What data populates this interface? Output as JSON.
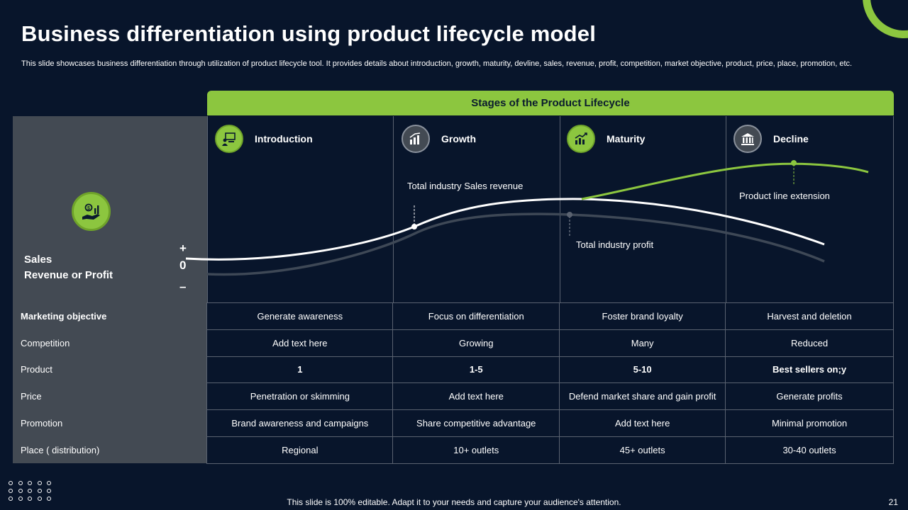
{
  "slide": {
    "title": "Business differentiation using product lifecycle model",
    "subtitle": "This slide showcases business differentiation through utilization of product lifecycle tool. It provides details about introduction, growth, maturity, devline, sales, revenue, profit, competition, market objective, product, price, place, promotion, etc.",
    "footer": "This slide is 100% editable. Adapt it to your needs and capture your audience's attention.",
    "page_number": "21"
  },
  "header": {
    "label": "Stages of the Product Lifecycle"
  },
  "stages": [
    {
      "label": "Introduction",
      "icon": "presentation-icon"
    },
    {
      "label": "Growth",
      "icon": "growth-chart-icon"
    },
    {
      "label": "Maturity",
      "icon": "maturity-chart-icon"
    },
    {
      "label": "Decline",
      "icon": "building-icon"
    }
  ],
  "chart": {
    "y_label_line1": "Sales",
    "y_label_line2": "Revenue or Profit",
    "plus": "+",
    "zero": "0",
    "minus": "–",
    "note_sales": "Total industry Sales revenue",
    "note_profit": "Total industry profit",
    "note_extension": "Product line extension"
  },
  "rows": [
    {
      "label": "Marketing objective",
      "cells": [
        "Generate  awareness",
        "Focus on differentiation",
        "Foster brand loyalty",
        "Harvest  and deletion"
      ]
    },
    {
      "label": "Competition",
      "cells": [
        "Add text here",
        "Growing",
        "Many",
        "Reduced"
      ]
    },
    {
      "label": "Product",
      "cells": [
        "1",
        "1-5",
        "5-10",
        "Best sellers on;y"
      ]
    },
    {
      "label": "Price",
      "cells": [
        "Penetration or skimming",
        "Add text here",
        "Defend  market  share  and  gain  profit",
        "Generate  profits"
      ]
    },
    {
      "label": "Promotion",
      "cells": [
        "Brand  awareness  and campaigns",
        "Share competitive  advantage",
        "Add text here",
        "Minimal  promotion"
      ]
    },
    {
      "label": "Place ( distribution)",
      "cells": [
        "Regional",
        "10+ outlets",
        "45+ outlets",
        "30-40 outlets"
      ]
    }
  ],
  "colors": {
    "background": "#08152b",
    "accent": "#8cc63f",
    "panel": "#434a53"
  }
}
